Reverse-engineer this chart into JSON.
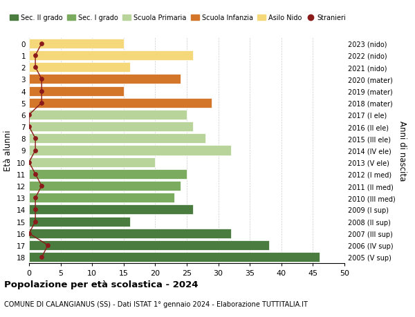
{
  "ages": [
    18,
    17,
    16,
    15,
    14,
    13,
    12,
    11,
    10,
    9,
    8,
    7,
    6,
    5,
    4,
    3,
    2,
    1,
    0
  ],
  "values": [
    46,
    38,
    32,
    16,
    26,
    23,
    24,
    25,
    20,
    32,
    28,
    26,
    25,
    29,
    15,
    24,
    16,
    26,
    15
  ],
  "stranieri": [
    2,
    3,
    0,
    1,
    1,
    1,
    2,
    1,
    0,
    1,
    1,
    0,
    0,
    2,
    2,
    2,
    1,
    1,
    2
  ],
  "right_labels": [
    "2005 (V sup)",
    "2006 (IV sup)",
    "2007 (III sup)",
    "2008 (II sup)",
    "2009 (I sup)",
    "2010 (III med)",
    "2011 (II med)",
    "2012 (I med)",
    "2013 (V ele)",
    "2014 (IV ele)",
    "2015 (III ele)",
    "2016 (II ele)",
    "2017 (I ele)",
    "2018 (mater)",
    "2019 (mater)",
    "2020 (mater)",
    "2021 (nido)",
    "2022 (nido)",
    "2023 (nido)"
  ],
  "bar_colors": [
    "#4a7c3f",
    "#4a7c3f",
    "#4a7c3f",
    "#4a7c3f",
    "#4a7c3f",
    "#7aab5e",
    "#7aab5e",
    "#7aab5e",
    "#b8d49b",
    "#b8d49b",
    "#b8d49b",
    "#b8d49b",
    "#b8d49b",
    "#d4762a",
    "#d4762a",
    "#d4762a",
    "#f5d87a",
    "#f5d87a",
    "#f5d87a"
  ],
  "stranieri_color": "#8b1a1a",
  "stranieri_line_color": "#8b1a1a",
  "legend_items": [
    {
      "label": "Sec. II grado",
      "color": "#4a7c3f"
    },
    {
      "label": "Sec. I grado",
      "color": "#7aab5e"
    },
    {
      "label": "Scuola Primaria",
      "color": "#b8d49b"
    },
    {
      "label": "Scuola Infanzia",
      "color": "#d4762a"
    },
    {
      "label": "Asilo Nido",
      "color": "#f5d87a"
    },
    {
      "label": "Stranieri",
      "color": "#8b1a1a"
    }
  ],
  "ylabel": "Età alunni",
  "right_ylabel": "Anni di nascita",
  "title": "Popolazione per età scolastica - 2024",
  "subtitle": "COMUNE DI CALANGIANUS (SS) - Dati ISTAT 1° gennaio 2024 - Elaborazione TUTTITALIA.IT",
  "xlim": [
    0,
    50
  ],
  "xticks": [
    0,
    5,
    10,
    15,
    20,
    25,
    30,
    35,
    40,
    45,
    50
  ],
  "background_color": "#ffffff",
  "grid_color": "#cccccc"
}
